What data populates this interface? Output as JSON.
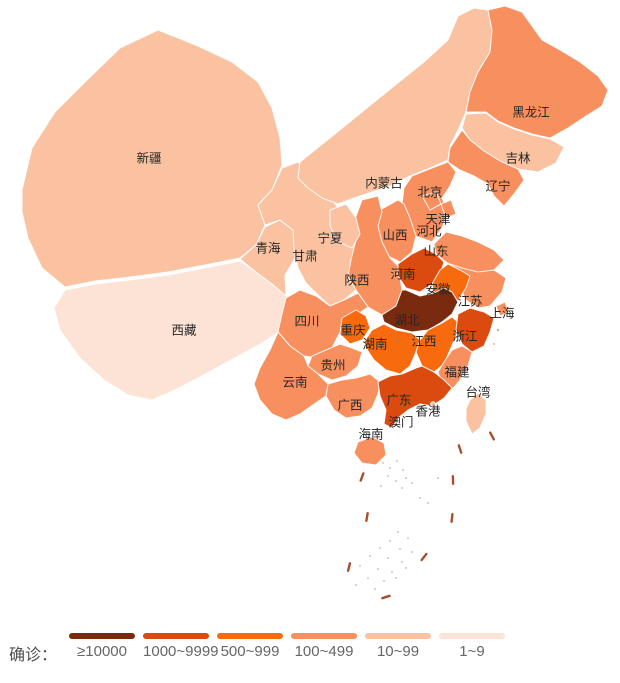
{
  "legend": {
    "title": "确诊：",
    "items": [
      {
        "label": "≥10000",
        "color": "#7a2a0e"
      },
      {
        "label": "1000~9999",
        "color": "#db4a0e"
      },
      {
        "label": "500~999",
        "color": "#f76a0e"
      },
      {
        "label": "100~499",
        "color": "#f88f5e"
      },
      {
        "label": "10~99",
        "color": "#fac2a1"
      },
      {
        "label": "1~9",
        "color": "#fce3d5"
      }
    ]
  },
  "map": {
    "label_color": "#262626",
    "sea_dash_color": "#aa4f2e",
    "islet_color": "#d9cfc8",
    "provinces": [
      {
        "key": "xinjiang",
        "name": "新疆",
        "level": "10~99"
      },
      {
        "key": "xizang",
        "name": "西藏",
        "level": "1~9"
      },
      {
        "key": "qinghai",
        "name": "青海",
        "level": "10~99"
      },
      {
        "key": "gansu",
        "name": "甘肃",
        "level": "10~99"
      },
      {
        "key": "ningxia",
        "name": "宁夏",
        "level": "10~99"
      },
      {
        "key": "neimenggu",
        "name": "内蒙古",
        "level": "10~99"
      },
      {
        "key": "heilongjiang",
        "name": "黑龙江",
        "level": "100~499"
      },
      {
        "key": "jilin",
        "name": "吉林",
        "level": "10~99"
      },
      {
        "key": "liaoning",
        "name": "辽宁",
        "level": "100~499"
      },
      {
        "key": "beijing",
        "name": "北京",
        "level": "100~499"
      },
      {
        "key": "tianjin",
        "name": "天津",
        "level": "100~499"
      },
      {
        "key": "hebei",
        "name": "河北",
        "level": "100~499"
      },
      {
        "key": "shanxi",
        "name": "山西",
        "level": "100~499"
      },
      {
        "key": "shandong",
        "name": "山东",
        "level": "100~499"
      },
      {
        "key": "shaanxi",
        "name": "陕西",
        "level": "100~499"
      },
      {
        "key": "henan",
        "name": "河南",
        "level": "1000~9999"
      },
      {
        "key": "jiangsu",
        "name": "江苏",
        "level": "100~499"
      },
      {
        "key": "anhui",
        "name": "安徽",
        "level": "500~999"
      },
      {
        "key": "shanghai",
        "name": "上海",
        "level": "100~499"
      },
      {
        "key": "hubei",
        "name": "湖北",
        "level": "≥10000"
      },
      {
        "key": "chongqing",
        "name": "重庆",
        "level": "500~999"
      },
      {
        "key": "sichuan",
        "name": "四川",
        "level": "100~499"
      },
      {
        "key": "hunan",
        "name": "湖南",
        "level": "500~999"
      },
      {
        "key": "jiangxi",
        "name": "江西",
        "level": "500~999"
      },
      {
        "key": "zhejiang",
        "name": "浙江",
        "level": "1000~9999"
      },
      {
        "key": "fujian",
        "name": "福建",
        "level": "100~499"
      },
      {
        "key": "guizhou",
        "name": "贵州",
        "level": "100~499"
      },
      {
        "key": "yunnan",
        "name": "云南",
        "level": "100~499"
      },
      {
        "key": "guangxi",
        "name": "广西",
        "level": "100~499"
      },
      {
        "key": "guangdong",
        "name": "广东",
        "level": "1000~9999"
      },
      {
        "key": "hongkong",
        "name": "香港",
        "level": "10~99"
      },
      {
        "key": "macau",
        "name": "澳门",
        "level": "10~99"
      },
      {
        "key": "hainan",
        "name": "海南",
        "level": "100~499"
      },
      {
        "key": "taiwan",
        "name": "台湾",
        "level": "10~99"
      }
    ]
  }
}
